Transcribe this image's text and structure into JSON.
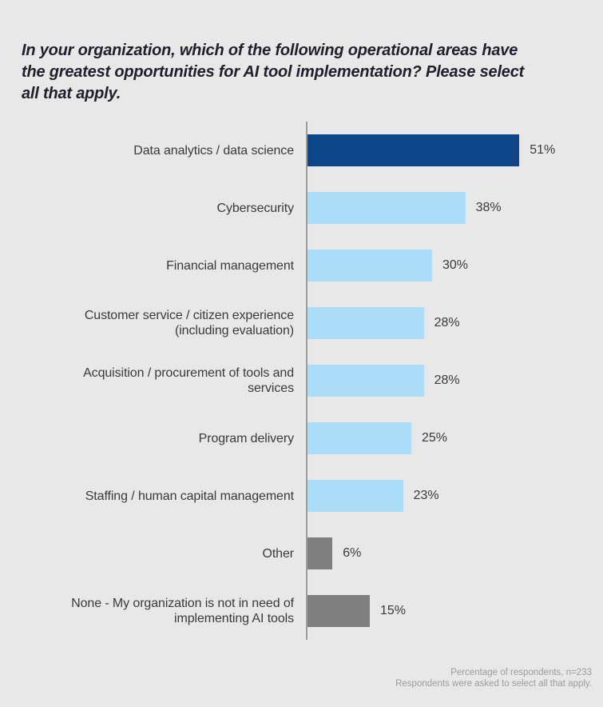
{
  "chart_data": {
    "type": "bar",
    "orientation": "horizontal",
    "title": "In your organization, which of the following operational areas have\nthe greatest opportunities for AI tool implementation? Please select\nall that apply.",
    "categories": [
      "Data analytics / data science",
      "Cybersecurity",
      "Financial management",
      "Customer service / citizen experience\n(including evaluation)",
      "Acquisition / procurement of tools and\nservices",
      "Program delivery",
      "Staffing / human capital management",
      "Other",
      "None - My organization is not in need of\nimplementing AI tools"
    ],
    "values": [
      51,
      38,
      30,
      28,
      28,
      25,
      23,
      6,
      15
    ],
    "value_labels": [
      "51%",
      "38%",
      "30%",
      "28%",
      "28%",
      "25%",
      "23%",
      "6%",
      "15%"
    ],
    "bar_color_keys": [
      "dark_blue",
      "light_blue",
      "light_blue",
      "light_blue",
      "light_blue",
      "light_blue",
      "light_blue",
      "gray",
      "gray"
    ],
    "unit": "%",
    "xlim": [
      0,
      55
    ],
    "grid": false,
    "legend": "none",
    "value_label_position": "right-of-bar",
    "footnotes": [
      "Percentage of respondents, n=233",
      "Respondents were asked to select all that apply."
    ]
  },
  "colors": {
    "dark_blue": "#0d4688",
    "light_blue": "#a9ddf8",
    "gray": "#7f7f7f",
    "background": "#e8e8e8",
    "axis_line": "#9e9e9e",
    "label_text": "#3a3a3a",
    "title_text": "#20202a",
    "footer_text": "#9b9b9b"
  }
}
